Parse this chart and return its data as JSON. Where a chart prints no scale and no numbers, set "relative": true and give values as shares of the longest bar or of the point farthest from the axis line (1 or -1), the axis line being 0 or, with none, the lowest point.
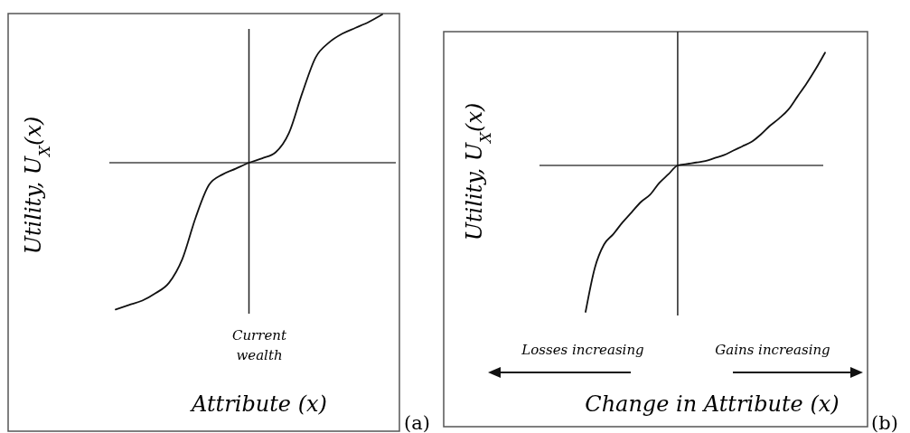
{
  "chart_data": [
    {
      "type": "line",
      "xlabel": "Attribute (x)",
      "ylabel": "Utility, U$_{X}$(x)",
      "relative": true,
      "color": "#111111",
      "annotations": [
        "Current wealth",
        "(a)"
      ],
      "categories": [
        null,
        null,
        null,
        null,
        null,
        null,
        null,
        null,
        null,
        null,
        null,
        null,
        null,
        null,
        null,
        null,
        null,
        null,
        null,
        null,
        null
      ],
      "values": [
        -0.99,
        -0.96,
        -0.93,
        -0.88,
        -0.81,
        -0.65,
        -0.37,
        -0.15,
        -0.08,
        -0.04,
        0,
        0.03,
        0.07,
        0.2,
        0.47,
        0.71,
        0.81,
        0.87,
        0.91,
        0.95,
        1.0
      ]
    },
    {
      "type": "line",
      "xlabel": "Change in Attribute (x)",
      "ylabel": "Utility, U$_{X}$(x)",
      "relative": true,
      "color": "#111111",
      "annotations": [
        "Losses increasing",
        "Gains increasing",
        "(b)"
      ],
      "categories": [
        null,
        null,
        null,
        null,
        null,
        null,
        null,
        null,
        null,
        null,
        null,
        null,
        null,
        null,
        null,
        null,
        null,
        null,
        null,
        null,
        null,
        null,
        null,
        null,
        null,
        null,
        null
      ],
      "values": [
        -1.0,
        -0.7,
        -0.54,
        -0.47,
        -0.39,
        -0.32,
        -0.25,
        -0.2,
        -0.12,
        -0.06,
        0,
        0.01,
        0.02,
        0.03,
        0.05,
        0.07,
        0.1,
        0.13,
        0.16,
        0.21,
        0.27,
        0.32,
        0.38,
        0.47,
        0.56,
        0.66,
        0.77
      ]
    }
  ]
}
